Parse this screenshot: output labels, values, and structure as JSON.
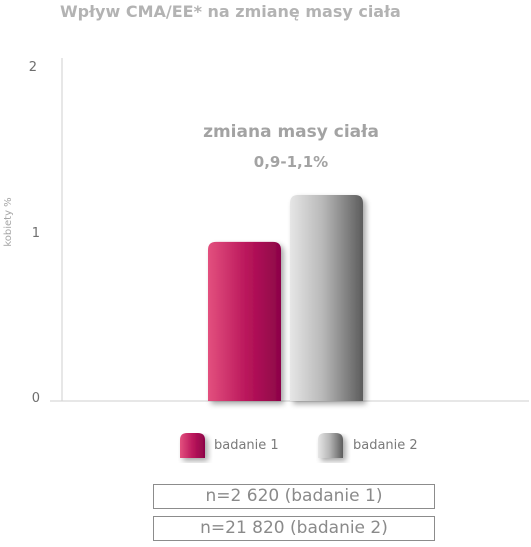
{
  "title": "Wpływ CMA/EE* na zmianę masy ciała",
  "chart_data": {
    "type": "bar",
    "categories": [
      "badanie 1",
      "badanie 2"
    ],
    "values": [
      0.95,
      1.23
    ],
    "ylabel": "kobiety %",
    "yticks": [
      "0",
      "1",
      "2"
    ],
    "ylim": [
      0,
      2
    ],
    "grid": false,
    "annotation": {
      "line1": "zmiana masy ciała",
      "line2": "0,9-1,1%"
    },
    "legend": {
      "placement": "bottom",
      "items": [
        "badanie 1",
        "badanie 2"
      ]
    },
    "colors": {
      "badanie 1": "#b0104f",
      "badanie 2": "#8a8a8a"
    }
  },
  "notes": [
    "n=2 620 (badanie 1)",
    "n=21 820 (badanie 2)"
  ]
}
